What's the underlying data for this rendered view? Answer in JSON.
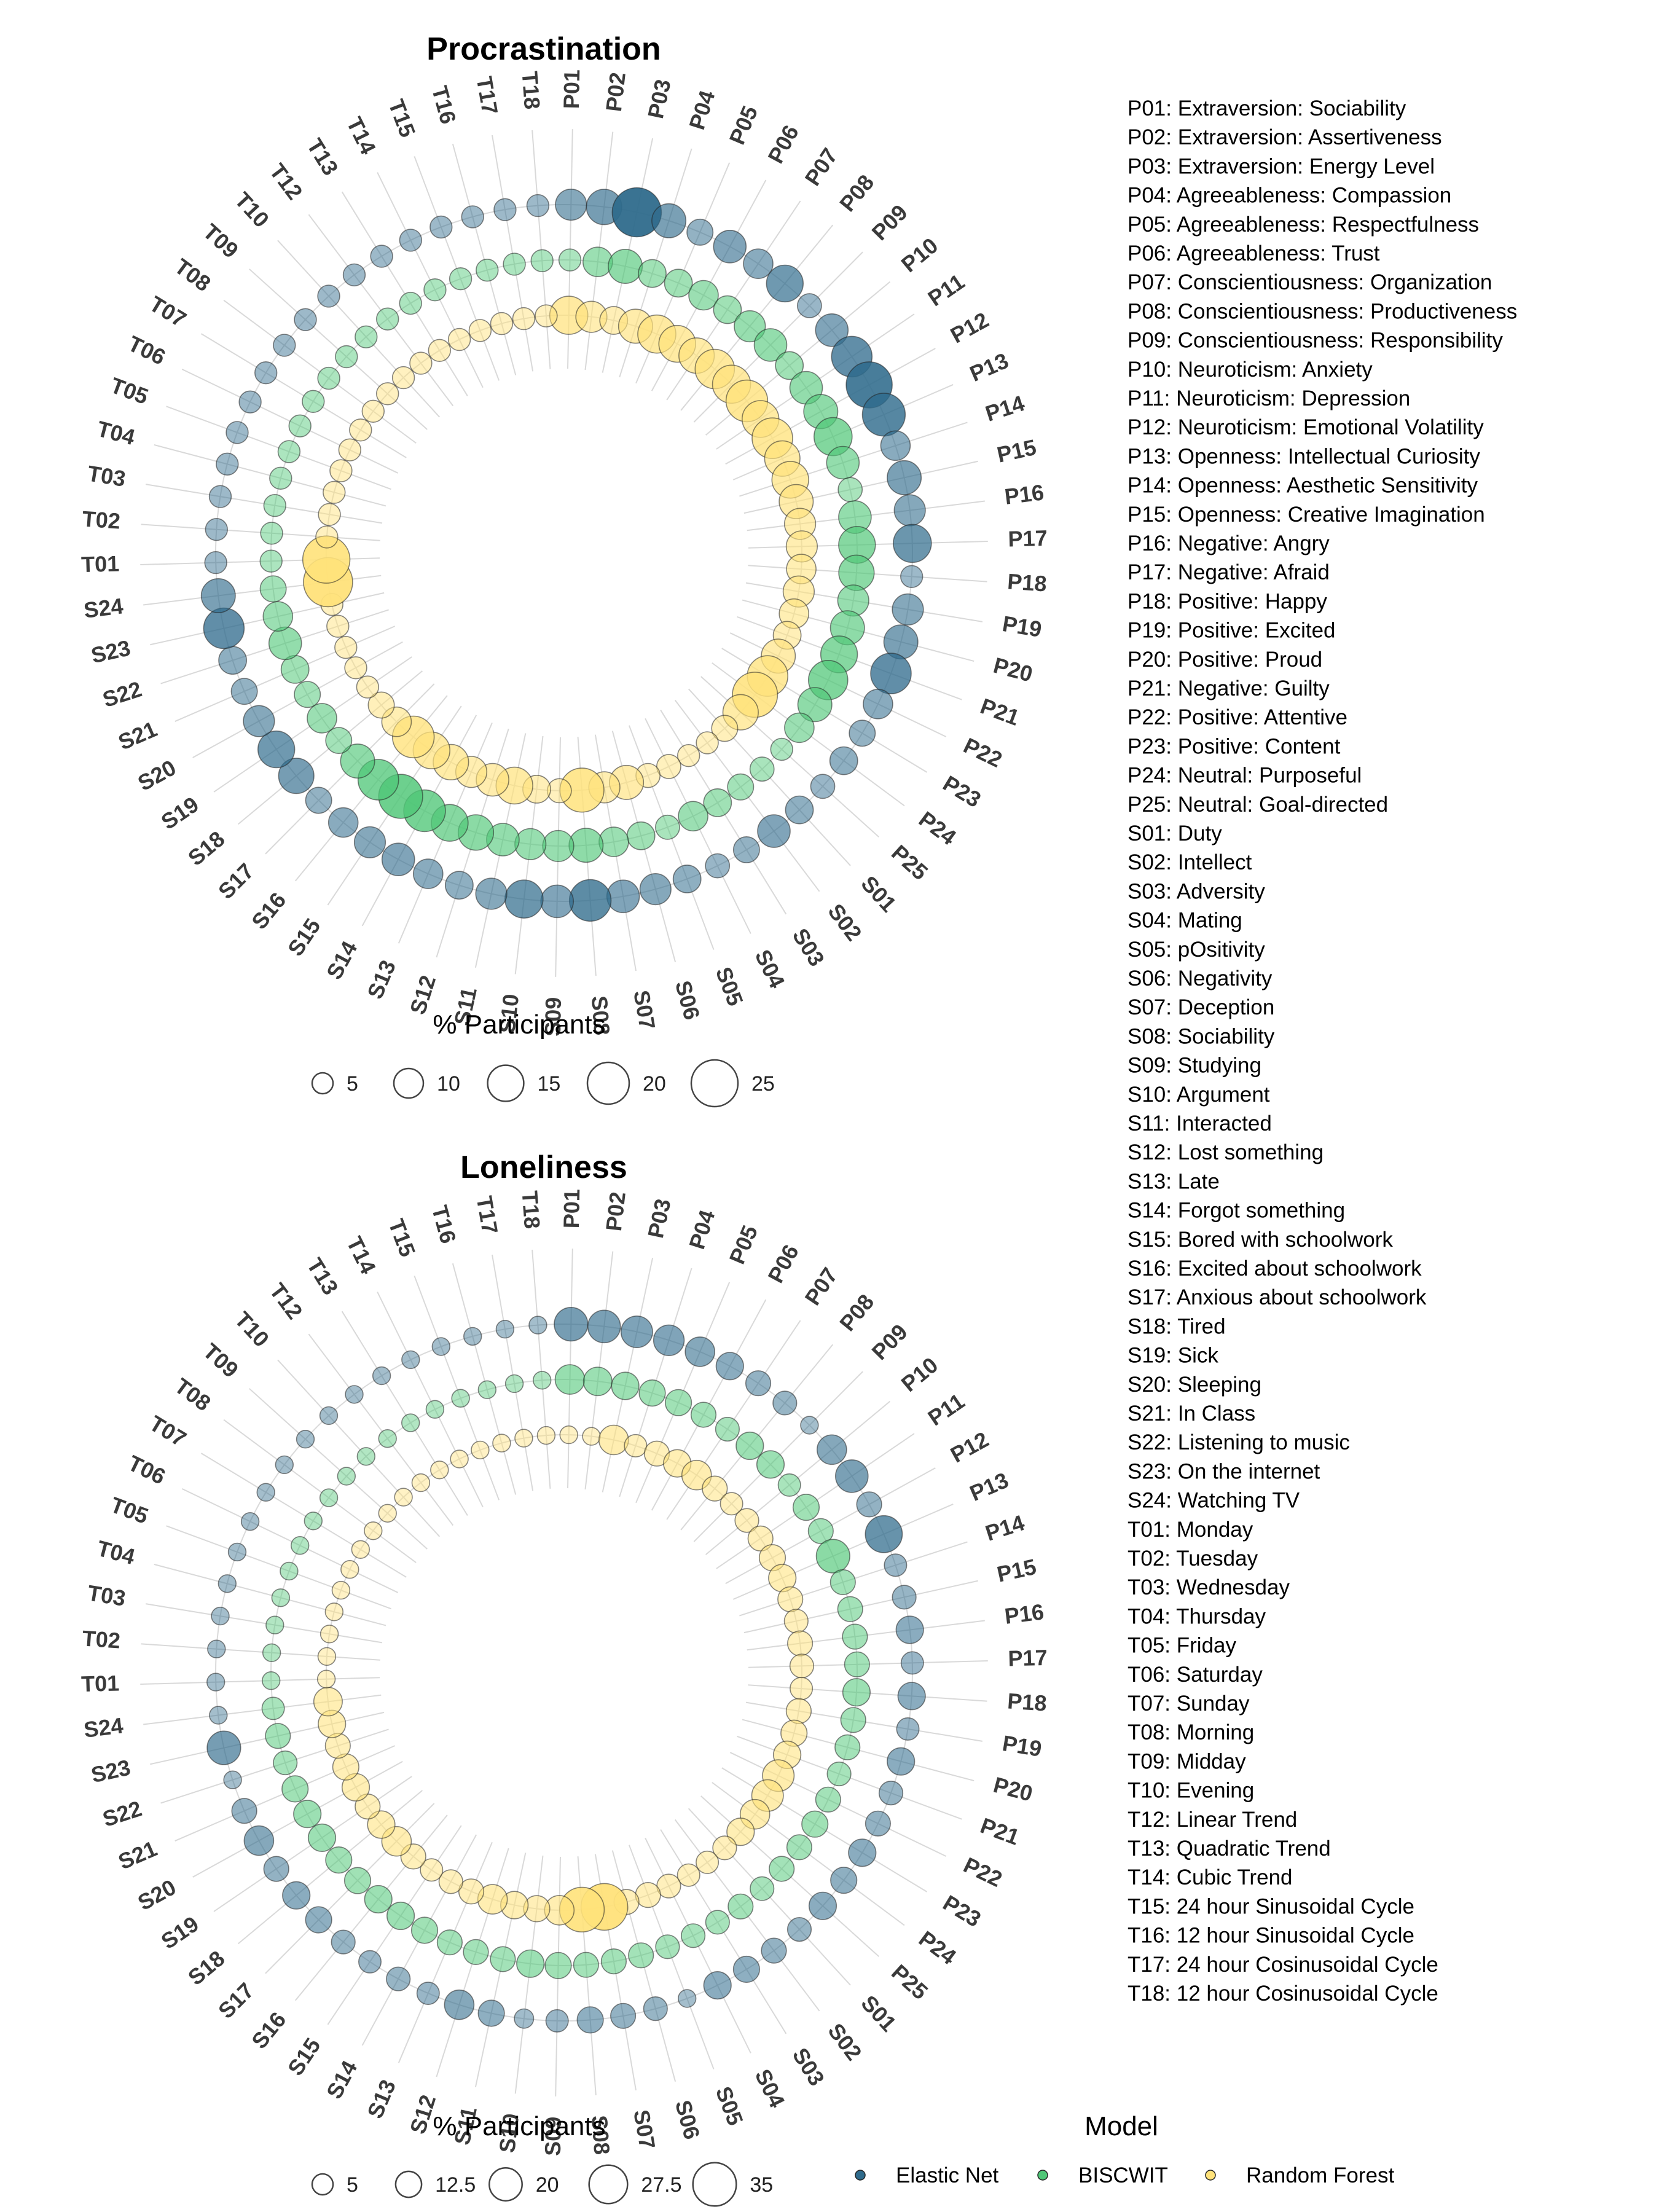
{
  "colors": {
    "elastic_net": "#2f6b8c",
    "biscwit": "#4fc777",
    "random_forest": "#ffe27a"
  },
  "labels": [
    "P01",
    "P02",
    "P03",
    "P04",
    "P05",
    "P06",
    "P07",
    "P08",
    "P09",
    "P10",
    "P11",
    "P12",
    "P13",
    "P14",
    "P15",
    "P16",
    "P17",
    "P18",
    "P19",
    "P20",
    "P21",
    "P22",
    "P23",
    "P24",
    "P25",
    "S01",
    "S02",
    "S03",
    "S04",
    "S05",
    "S06",
    "S07",
    "S08",
    "S09",
    "S10",
    "S11",
    "S12",
    "S13",
    "S14",
    "S15",
    "S16",
    "S17",
    "S18",
    "S19",
    "S20",
    "S21",
    "S22",
    "S23",
    "S24",
    "T01",
    "T02",
    "T03",
    "T04",
    "T05",
    "T06",
    "T07",
    "T08",
    "T09",
    "T10",
    "T12",
    "T13",
    "T14",
    "T15",
    "T16",
    "T17",
    "T18"
  ],
  "key": [
    "P01: Extraversion: Sociability",
    "P02: Extraversion: Assertiveness",
    "P03: Extraversion: Energy Level",
    "P04: Agreeableness: Compassion",
    "P05: Agreeableness: Respectfulness",
    "P06: Agreeableness: Trust",
    "P07: Conscientiousness: Organization",
    "P08: Conscientiousness: Productiveness",
    "P09: Conscientiousness: Responsibility",
    "P10: Neuroticism: Anxiety",
    "P11: Neuroticism: Depression",
    "P12: Neuroticism: Emotional Volatility",
    "P13: Openness: Intellectual Curiosity",
    "P14: Openness: Aesthetic Sensitivity",
    "P15: Openness: Creative Imagination",
    "P16: Negative: Angry",
    "P17: Negative: Afraid",
    "P18: Positive: Happy",
    "P19: Positive: Excited",
    "P20: Positive: Proud",
    "P21: Negative: Guilty",
    "P22: Positive: Attentive",
    "P23: Positive: Content",
    "P24: Neutral: Purposeful",
    "P25: Neutral: Goal-directed",
    "S01: Duty",
    "S02: Intellect",
    "S03: Adversity",
    "S04: Mating",
    "S05: pOsitivity",
    "S06: Negativity",
    "S07: Deception",
    "S08: Sociability",
    "S09: Studying",
    "S10: Argument",
    "S11: Interacted",
    "S12: Lost something",
    "S13: Late",
    "S14: Forgot something",
    "S15: Bored with schoolwork",
    "S16: Excited about schoolwork",
    "S17: Anxious about schoolwork",
    "S18: Tired",
    "S19: Sick",
    "S20: Sleeping",
    "S21: In Class",
    "S22: Listening to music",
    "S23: On the internet",
    "S24: Watching TV",
    "T01: Monday",
    "T02: Tuesday",
    "T03: Wednesday",
    "T04: Thursday",
    "T05: Friday",
    "T06: Saturday",
    "T07: Sunday",
    "T08: Morning",
    "T09: Midday",
    "T10: Evening",
    "T12: Linear Trend",
    "T13: Quadratic Trend",
    "T14: Cubic Trend",
    "T15: 24 hour Sinusoidal Cycle",
    "T16: 12 hour Sinusoidal Cycle",
    "T17: 24 hour Cosinusoidal Cycle",
    "T18: 12 hour Cosinusoidal Cycle"
  ],
  "model_legend": {
    "title": "Model",
    "items": [
      "Elastic Net",
      "BISCWIT",
      "Random Forest"
    ]
  },
  "chart_data": [
    {
      "type": "scatter",
      "subtype": "radial-bubble",
      "title": "Procrastination",
      "size_legend": {
        "title": "% Participants",
        "breaks": [
          5,
          10,
          15,
          20,
          25
        ],
        "break_labels": [
          "5",
          "10",
          "15",
          "20",
          "25"
        ]
      },
      "max_size": 25,
      "series": [
        {
          "name": "Elastic Net",
          "values": [
            10,
            13,
            25,
            12,
            7,
            11,
            9,
            14,
            6,
            11,
            17,
            22,
            19,
            9,
            12,
            10,
            15,
            5,
            10,
            12,
            17,
            9,
            7,
            8,
            6,
            8,
            11,
            7,
            6,
            8,
            10,
            11,
            18,
            11,
            15,
            10,
            8,
            9,
            11,
            10,
            9,
            7,
            13,
            14,
            10,
            7,
            8,
            17,
            12,
            5,
            5,
            5,
            5,
            5,
            5,
            5,
            5,
            5,
            5,
            5,
            5,
            5,
            5,
            5,
            5,
            5
          ]
        },
        {
          "name": "BISCWIT",
          "values": [
            5,
            9,
            12,
            8,
            8,
            9,
            8,
            10,
            11,
            8,
            11,
            12,
            15,
            11,
            6,
            11,
            14,
            13,
            10,
            12,
            14,
            16,
            12,
            9,
            5,
            6,
            7,
            8,
            9,
            6,
            8,
            9,
            12,
            10,
            10,
            11,
            13,
            14,
            18,
            20,
            17,
            12,
            7,
            9,
            7,
            8,
            11,
            9,
            7,
            5,
            5,
            5,
            5,
            5,
            5,
            5,
            5,
            5,
            5,
            5,
            5,
            5,
            5,
            5,
            5,
            5
          ]
        },
        {
          "name": "Random Forest",
          "values": [
            15,
            10,
            8,
            12,
            15,
            14,
            13,
            16,
            15,
            18,
            14,
            17,
            13,
            14,
            12,
            10,
            10,
            9,
            10,
            9,
            8,
            12,
            17,
            21,
            13,
            7,
            5,
            5,
            6,
            6,
            12,
            10,
            20,
            6,
            8,
            14,
            11,
            10,
            13,
            14,
            18,
            9,
            7,
            5,
            5,
            5,
            5,
            5,
            25,
            23,
            5,
            5,
            5,
            5,
            5,
            5,
            5,
            5,
            5,
            5,
            5,
            5,
            5,
            5,
            5,
            5
          ]
        }
      ]
    },
    {
      "type": "scatter",
      "subtype": "radial-bubble",
      "title": "Loneliness",
      "size_legend": {
        "title": "% Participants",
        "breaks": [
          5,
          12.5,
          20,
          27.5,
          35
        ],
        "break_labels": [
          "5",
          "12.5",
          "20",
          "27.5",
          "35"
        ]
      },
      "max_size": 35,
      "series": [
        {
          "name": "Elastic Net",
          "values": [
            18,
            17,
            16,
            15,
            14,
            12,
            10,
            9,
            5,
            14,
            17,
            10,
            22,
            8,
            9,
            12,
            8,
            12,
            8,
            12,
            9,
            10,
            12,
            11,
            12,
            9,
            10,
            11,
            12,
            5,
            9,
            10,
            11,
            8,
            6,
            11,
            14,
            8,
            9,
            8,
            9,
            11,
            12,
            10,
            14,
            10,
            5,
            18,
            5,
            5,
            5,
            5,
            5,
            5,
            5,
            5,
            5,
            5,
            5,
            5,
            5,
            5,
            5,
            5,
            5,
            5
          ]
        },
        {
          "name": "BISCWIT",
          "values": [
            14,
            13,
            12,
            11,
            11,
            10,
            9,
            12,
            12,
            8,
            11,
            10,
            18,
            10,
            10,
            10,
            10,
            12,
            10,
            10,
            9,
            10,
            11,
            10,
            10,
            9,
            10,
            9,
            9,
            9,
            10,
            10,
            10,
            11,
            12,
            10,
            10,
            10,
            11,
            12,
            12,
            11,
            11,
            12,
            12,
            11,
            9,
            10,
            8,
            5,
            5,
            5,
            5,
            5,
            5,
            5,
            5,
            5,
            5,
            5,
            5,
            5,
            5,
            5,
            5,
            5
          ]
        },
        {
          "name": "Random Forest",
          "values": [
            5,
            5,
            14,
            8,
            10,
            12,
            14,
            10,
            8,
            9,
            10,
            11,
            12,
            10,
            9,
            10,
            9,
            8,
            10,
            11,
            12,
            16,
            16,
            14,
            12,
            9,
            8,
            8,
            9,
            10,
            10,
            35,
            32,
            14,
            11,
            12,
            14,
            10,
            9,
            8,
            10,
            14,
            12,
            10,
            12,
            11,
            10,
            12,
            13,
            5,
            5,
            5,
            5,
            5,
            5,
            5,
            5,
            5,
            5,
            5,
            5,
            5,
            5,
            5,
            5,
            5
          ]
        }
      ]
    }
  ]
}
